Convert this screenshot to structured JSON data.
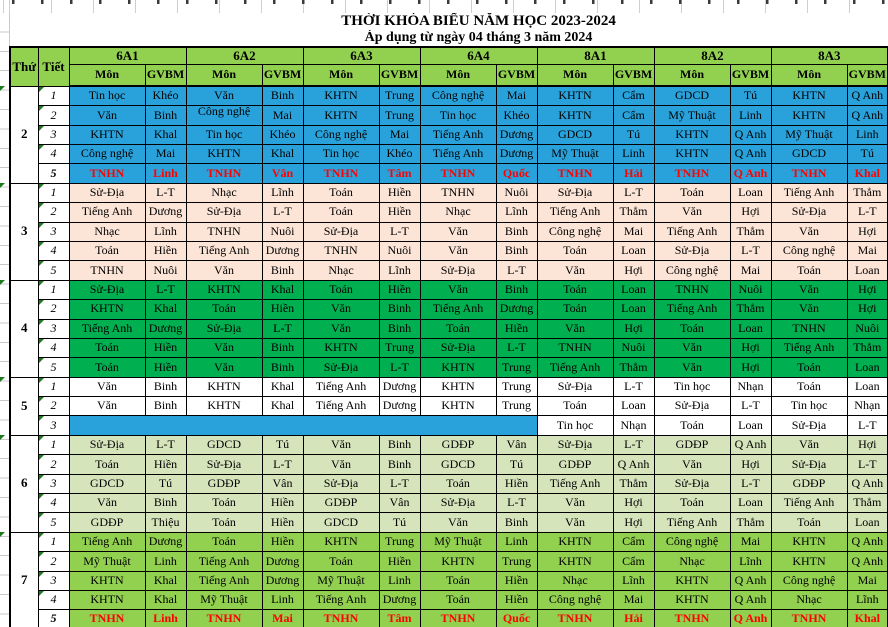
{
  "title": "THỜI KHÓA BIỂU NĂM HỌC 2023-2024",
  "subtitle": "Áp dụng từ ngày 04 tháng 3 năm 2024",
  "header": {
    "day_label": "Thứ",
    "period_label": "Tiết",
    "mon_label": "Môn",
    "gvbm_label": "GVBM",
    "classes": [
      "6A1",
      "6A2",
      "6A3",
      "6A4",
      "8A1",
      "8A2",
      "8A3"
    ]
  },
  "colors": {
    "header_green": "#92D050",
    "day2_blue": "#29A2DB",
    "day3_peach": "#FCE4D6",
    "day4_green": "#00B050",
    "day5_white": "#FFFFFF",
    "day6_light_green": "#D6E4BC",
    "day7_green": "#92D050",
    "empty_blue": "#29A2DB",
    "tnhn_red": "#FF0000",
    "triangle_green": "#1E7A1E"
  },
  "days": [
    {
      "day": "2",
      "bg": "day2_blue",
      "periods": [
        {
          "n": "1",
          "cells": [
            [
              "Tin học",
              "Khéo"
            ],
            [
              "Văn",
              "Binh"
            ],
            [
              "KHTN",
              "Trung"
            ],
            [
              "Công nghệ",
              "Mai"
            ],
            [
              "KHTN",
              "Cẩm"
            ],
            [
              "GDCD",
              "Tú"
            ],
            [
              "KHTN",
              "Q Anh"
            ]
          ]
        },
        {
          "n": "2",
          "cells": [
            [
              "Văn",
              "Binh"
            ],
            [
              "Công nghệ",
              "Mai",
              "wrap"
            ],
            [
              "KHTN",
              "Trung"
            ],
            [
              "Tin học",
              "Khéo"
            ],
            [
              "KHTN",
              "Cẩm"
            ],
            [
              "Mỹ Thuật",
              "Linh"
            ],
            [
              "KHTN",
              "Q Anh"
            ]
          ]
        },
        {
          "n": "3",
          "cells": [
            [
              "KHTN",
              "Khal"
            ],
            [
              "Tin học",
              "Khéo"
            ],
            [
              "Công nghệ",
              "Mai"
            ],
            [
              "Tiếng Anh",
              "Dương"
            ],
            [
              "GDCD",
              "Tú"
            ],
            [
              "KHTN",
              "Q Anh"
            ],
            [
              "Mỹ Thuật",
              "Linh"
            ]
          ]
        },
        {
          "n": "4",
          "cells": [
            [
              "Công nghệ",
              "Mai"
            ],
            [
              "KHTN",
              "Khal"
            ],
            [
              "Tin học",
              "Khéo"
            ],
            [
              "Tiếng Anh",
              "Dương"
            ],
            [
              "Mỹ Thuật",
              "Linh"
            ],
            [
              "KHTN",
              "Q Anh"
            ],
            [
              "GDCD",
              "Tú"
            ]
          ]
        },
        {
          "n": "5",
          "red": true,
          "cells": [
            [
              "TNHN",
              "Linh"
            ],
            [
              "TNHN",
              "Vân"
            ],
            [
              "TNHN",
              "Tâm"
            ],
            [
              "TNHN",
              "Quốc"
            ],
            [
              "TNHN",
              "Hải"
            ],
            [
              "TNHN",
              "Q Anh"
            ],
            [
              "TNHN",
              "Khal"
            ]
          ]
        }
      ]
    },
    {
      "day": "3",
      "bg": "day3_peach",
      "periods": [
        {
          "n": "1",
          "cells": [
            [
              "Sử-Địa",
              "L-T"
            ],
            [
              "Nhạc",
              "Lĩnh"
            ],
            [
              "Toán",
              "Hiền"
            ],
            [
              "TNHN",
              "Nuôi"
            ],
            [
              "Sử-Địa",
              "L-T"
            ],
            [
              "Toán",
              "Loan"
            ],
            [
              "Tiếng Anh",
              "Thẳm"
            ]
          ]
        },
        {
          "n": "2",
          "cells": [
            [
              "Tiếng Anh",
              "Dương"
            ],
            [
              "Sử-Địa",
              "L-T"
            ],
            [
              "Toán",
              "Hiền"
            ],
            [
              "Nhạc",
              "Lĩnh"
            ],
            [
              "Tiếng Anh",
              "Thẳm"
            ],
            [
              "Văn",
              "Hợi"
            ],
            [
              "Sử-Địa",
              "L-T"
            ]
          ]
        },
        {
          "n": "3",
          "cells": [
            [
              "Nhạc",
              "Lĩnh"
            ],
            [
              "TNHN",
              "Nuôi"
            ],
            [
              "Sử-Địa",
              "L-T"
            ],
            [
              "Văn",
              "Binh"
            ],
            [
              "Công nghệ",
              "Mai"
            ],
            [
              "Tiếng Anh",
              "Thẳm"
            ],
            [
              "Văn",
              "Hợi"
            ]
          ]
        },
        {
          "n": "4",
          "cells": [
            [
              "Toán",
              "Hiền"
            ],
            [
              "Tiếng Anh",
              "Dương"
            ],
            [
              "TNHN",
              "Nuôi"
            ],
            [
              "Văn",
              "Binh"
            ],
            [
              "Toán",
              "Loan"
            ],
            [
              "Sử-Địa",
              "L-T"
            ],
            [
              "Công nghệ",
              "Mai"
            ]
          ]
        },
        {
          "n": "5",
          "cells": [
            [
              "TNHN",
              "Nuôi"
            ],
            [
              "Văn",
              "Binh"
            ],
            [
              "Nhạc",
              "Lĩnh"
            ],
            [
              "Sử-Địa",
              "L-T"
            ],
            [
              "Văn",
              "Hợi"
            ],
            [
              "Công nghệ",
              "Mai"
            ],
            [
              "Toán",
              "Loan"
            ]
          ]
        }
      ]
    },
    {
      "day": "4",
      "bg": "day4_green",
      "periods": [
        {
          "n": "1",
          "cells": [
            [
              "Sử-Địa",
              "L-T"
            ],
            [
              "KHTN",
              "Khal"
            ],
            [
              "Toán",
              "Hiền"
            ],
            [
              "Văn",
              "Binh"
            ],
            [
              "Toán",
              "Loan"
            ],
            [
              "TNHN",
              "Nuôi"
            ],
            [
              "Văn",
              "Hợi"
            ]
          ]
        },
        {
          "n": "2",
          "cells": [
            [
              "KHTN",
              "Khal"
            ],
            [
              "Toán",
              "Hiền"
            ],
            [
              "Văn",
              "Binh"
            ],
            [
              "Tiếng Anh",
              "Dương"
            ],
            [
              "Toán",
              "Loan"
            ],
            [
              "Tiếng Anh",
              "Thẳm"
            ],
            [
              "Văn",
              "Hợi"
            ]
          ]
        },
        {
          "n": "3",
          "cells": [
            [
              "Tiếng Anh",
              "Dương"
            ],
            [
              "Sử-Địa",
              "L-T"
            ],
            [
              "Văn",
              "Binh"
            ],
            [
              "Toán",
              "Hiền"
            ],
            [
              "Văn",
              "Hợi"
            ],
            [
              "Toán",
              "Loan"
            ],
            [
              "TNHN",
              "Nuôi"
            ]
          ]
        },
        {
          "n": "4",
          "cells": [
            [
              "Toán",
              "Hiền"
            ],
            [
              "Văn",
              "Binh"
            ],
            [
              "KHTN",
              "Trung"
            ],
            [
              "Sử-Địa",
              "L-T"
            ],
            [
              "TNHN",
              "Nuôi"
            ],
            [
              "Văn",
              "Hợi"
            ],
            [
              "Tiếng Anh",
              "Thẳm"
            ]
          ]
        },
        {
          "n": "5",
          "cells": [
            [
              "Toán",
              "Hiền"
            ],
            [
              "Văn",
              "Binh"
            ],
            [
              "Sử-Địa",
              "L-T"
            ],
            [
              "KHTN",
              "Trung"
            ],
            [
              "Tiếng Anh",
              "Thẳm"
            ],
            [
              "Văn",
              "Hợi"
            ],
            [
              "Toán",
              "Loan"
            ]
          ]
        }
      ]
    },
    {
      "day": "5",
      "bg": "day5_white",
      "periods": [
        {
          "n": "1",
          "cells": [
            [
              "Văn",
              "Binh"
            ],
            [
              "KHTN",
              "Khal"
            ],
            [
              "Tiếng Anh",
              "Dương"
            ],
            [
              "KHTN",
              "Trung"
            ],
            [
              "Sử-Địa",
              "L-T"
            ],
            [
              "Tin học",
              "Nhạn"
            ],
            [
              "Toán",
              "Loan"
            ]
          ]
        },
        {
          "n": "2",
          "cells": [
            [
              "Văn",
              "Binh"
            ],
            [
              "KHTN",
              "Khal"
            ],
            [
              "Tiếng Anh",
              "Dương"
            ],
            [
              "KHTN",
              "Trung"
            ],
            [
              "Toán",
              "Loan"
            ],
            [
              "Sử-Địa",
              "L-T"
            ],
            [
              "Tin học",
              "Nhạn"
            ]
          ]
        },
        {
          "n": "3",
          "cells": [
            null,
            null,
            null,
            null,
            [
              "Tin học",
              "Nhạn"
            ],
            [
              "Toán",
              "Loan"
            ],
            [
              "Sử-Địa",
              "L-T"
            ]
          ]
        }
      ]
    },
    {
      "day": "6",
      "bg": "day6_light_green",
      "periods": [
        {
          "n": "1",
          "cells": [
            [
              "Sử-Địa",
              "L-T"
            ],
            [
              "GDCD",
              "Tú"
            ],
            [
              "Văn",
              "Binh"
            ],
            [
              "GDĐP",
              "Vân"
            ],
            [
              "Sử-Địa",
              "L-T"
            ],
            [
              "GDĐP",
              "Q Anh"
            ],
            [
              "Văn",
              "Hợi"
            ]
          ]
        },
        {
          "n": "2",
          "cells": [
            [
              "Toán",
              "Hiền"
            ],
            [
              "Sử-Địa",
              "L-T"
            ],
            [
              "Văn",
              "Binh"
            ],
            [
              "GDCD",
              "Tú"
            ],
            [
              "GDĐP",
              "Q Anh"
            ],
            [
              "Văn",
              "Hợi"
            ],
            [
              "Sử-Địa",
              "L-T"
            ]
          ]
        },
        {
          "n": "3",
          "cells": [
            [
              "GDCD",
              "Tú"
            ],
            [
              "GDĐP",
              "Vân"
            ],
            [
              "Sử-Địa",
              "L-T"
            ],
            [
              "Toán",
              "Hiền"
            ],
            [
              "Tiếng Anh",
              "Thẳm"
            ],
            [
              "Sử-Địa",
              "L-T"
            ],
            [
              "GDĐP",
              "Q Anh"
            ]
          ]
        },
        {
          "n": "4",
          "cells": [
            [
              "Văn",
              "Binh"
            ],
            [
              "Toán",
              "Hiền"
            ],
            [
              "GDĐP",
              "Vân"
            ],
            [
              "Sử-Địa",
              "L-T"
            ],
            [
              "Văn",
              "Hợi"
            ],
            [
              "Toán",
              "Loan"
            ],
            [
              "Tiếng Anh",
              "Thẳm"
            ]
          ]
        },
        {
          "n": "5",
          "cells": [
            [
              "GDĐP",
              "Thiệu"
            ],
            [
              "Toán",
              "Hiền"
            ],
            [
              "GDCD",
              "Tú"
            ],
            [
              "Văn",
              "Binh"
            ],
            [
              "Văn",
              "Hợi"
            ],
            [
              "Tiếng Anh",
              "Thẳm"
            ],
            [
              "Toán",
              "Loan"
            ]
          ]
        }
      ]
    },
    {
      "day": "7",
      "bg": "day7_green",
      "periods": [
        {
          "n": "1",
          "cells": [
            [
              "Tiếng Anh",
              "Dương"
            ],
            [
              "Toán",
              "Hiền"
            ],
            [
              "KHTN",
              "Trung"
            ],
            [
              "Mỹ Thuật",
              "Linh"
            ],
            [
              "KHTN",
              "Cẩm"
            ],
            [
              "Công nghệ",
              "Mai"
            ],
            [
              "KHTN",
              "Q Anh"
            ]
          ]
        },
        {
          "n": "2",
          "cells": [
            [
              "Mỹ Thuật",
              "Linh"
            ],
            [
              "Tiếng Anh",
              "Dương"
            ],
            [
              "Toán",
              "Hiền"
            ],
            [
              "KHTN",
              "Trung"
            ],
            [
              "KHTN",
              "Cẩm"
            ],
            [
              "Nhạc",
              "Lĩnh"
            ],
            [
              "KHTN",
              "Q Anh"
            ]
          ]
        },
        {
          "n": "3",
          "cells": [
            [
              "KHTN",
              "Khal"
            ],
            [
              "Tiếng Anh",
              "Dương"
            ],
            [
              "Mỹ Thuật",
              "Linh"
            ],
            [
              "Toán",
              "Hiền"
            ],
            [
              "Nhạc",
              "Lĩnh"
            ],
            [
              "KHTN",
              "Q Anh"
            ],
            [
              "Công nghệ",
              "Mai"
            ]
          ]
        },
        {
          "n": "4",
          "cells": [
            [
              "KHTN",
              "Khal"
            ],
            [
              "Mỹ Thuật",
              "Linh"
            ],
            [
              "Tiếng Anh",
              "Dương"
            ],
            [
              "Toán",
              "Hiền"
            ],
            [
              "Công nghệ",
              "Mai"
            ],
            [
              "KHTN",
              "Q Anh"
            ],
            [
              "Nhạc",
              "Lĩnh"
            ]
          ]
        },
        {
          "n": "5",
          "red": true,
          "cells": [
            [
              "TNHN",
              "Linh"
            ],
            [
              "TNHN",
              "Mai"
            ],
            [
              "TNHN",
              "Tâm"
            ],
            [
              "TNHN",
              "Quốc"
            ],
            [
              "TNHN",
              "Hải"
            ],
            [
              "TNHN",
              "Q Anh"
            ],
            [
              "TNHN",
              "Khal"
            ]
          ]
        }
      ]
    }
  ]
}
